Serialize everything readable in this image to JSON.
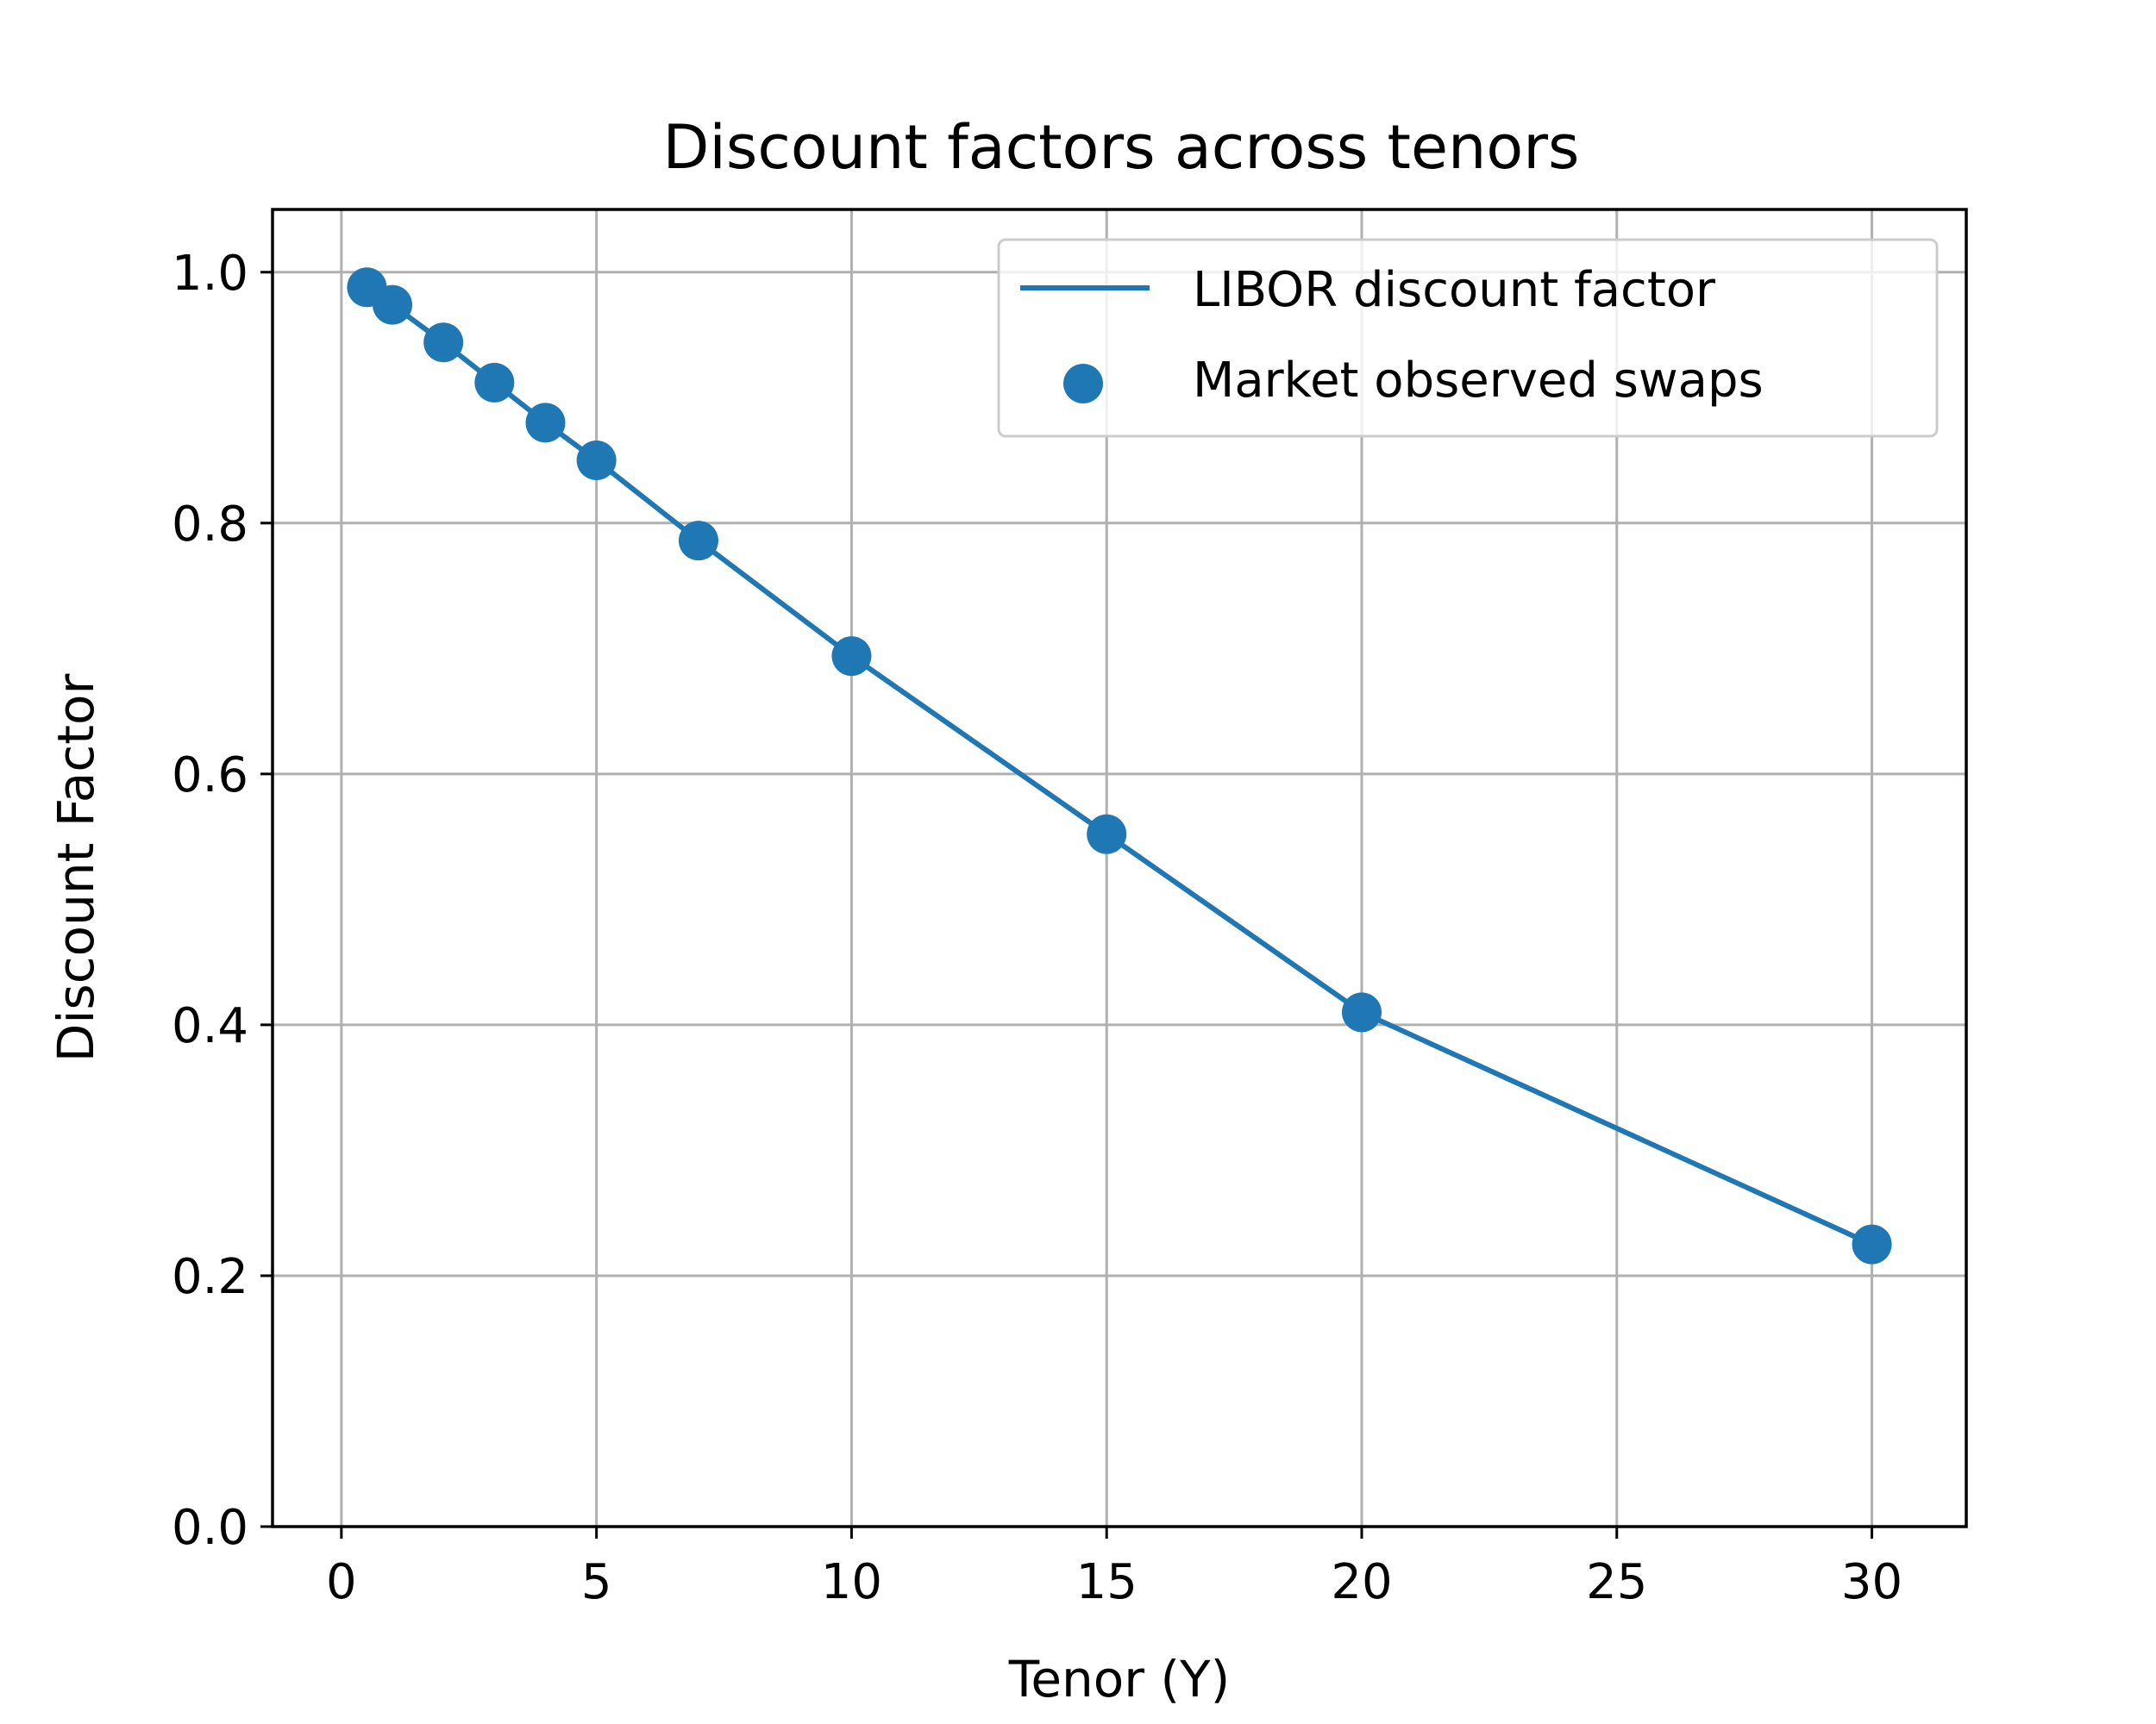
{
  "chart_data": {
    "type": "line",
    "title": "Discount factors across tenors",
    "xlabel": "Tenor (Y)",
    "ylabel": "Discount Factor",
    "xlim": [
      -1.35,
      31.85
    ],
    "ylim": [
      0.0,
      1.05
    ],
    "xticks": [
      0,
      5,
      10,
      15,
      20,
      25,
      30
    ],
    "yticks": [
      0.0,
      0.2,
      0.4,
      0.6,
      0.8,
      1.0
    ],
    "xtick_labels": [
      "0",
      "5",
      "10",
      "15",
      "20",
      "25",
      "30"
    ],
    "ytick_labels": [
      "0.0",
      "0.2",
      "0.4",
      "0.6",
      "0.8",
      "1.0"
    ],
    "grid": true,
    "legend_position": "top-right",
    "color": "#1f77b4",
    "series": [
      {
        "name": "LIBOR discount factor",
        "style": "line",
        "x": [
          0.5,
          1,
          2,
          3,
          4,
          5,
          7,
          10,
          15,
          20,
          30
        ],
        "y": [
          0.988,
          0.974,
          0.944,
          0.912,
          0.88,
          0.85,
          0.786,
          0.694,
          0.552,
          0.41,
          0.225
        ]
      },
      {
        "name": "Market observed swaps",
        "style": "scatter",
        "x": [
          0.5,
          1,
          2,
          3,
          4,
          5,
          7,
          10,
          15,
          20,
          30
        ],
        "y": [
          0.988,
          0.974,
          0.944,
          0.912,
          0.88,
          0.85,
          0.786,
          0.694,
          0.552,
          0.41,
          0.225
        ]
      }
    ]
  }
}
